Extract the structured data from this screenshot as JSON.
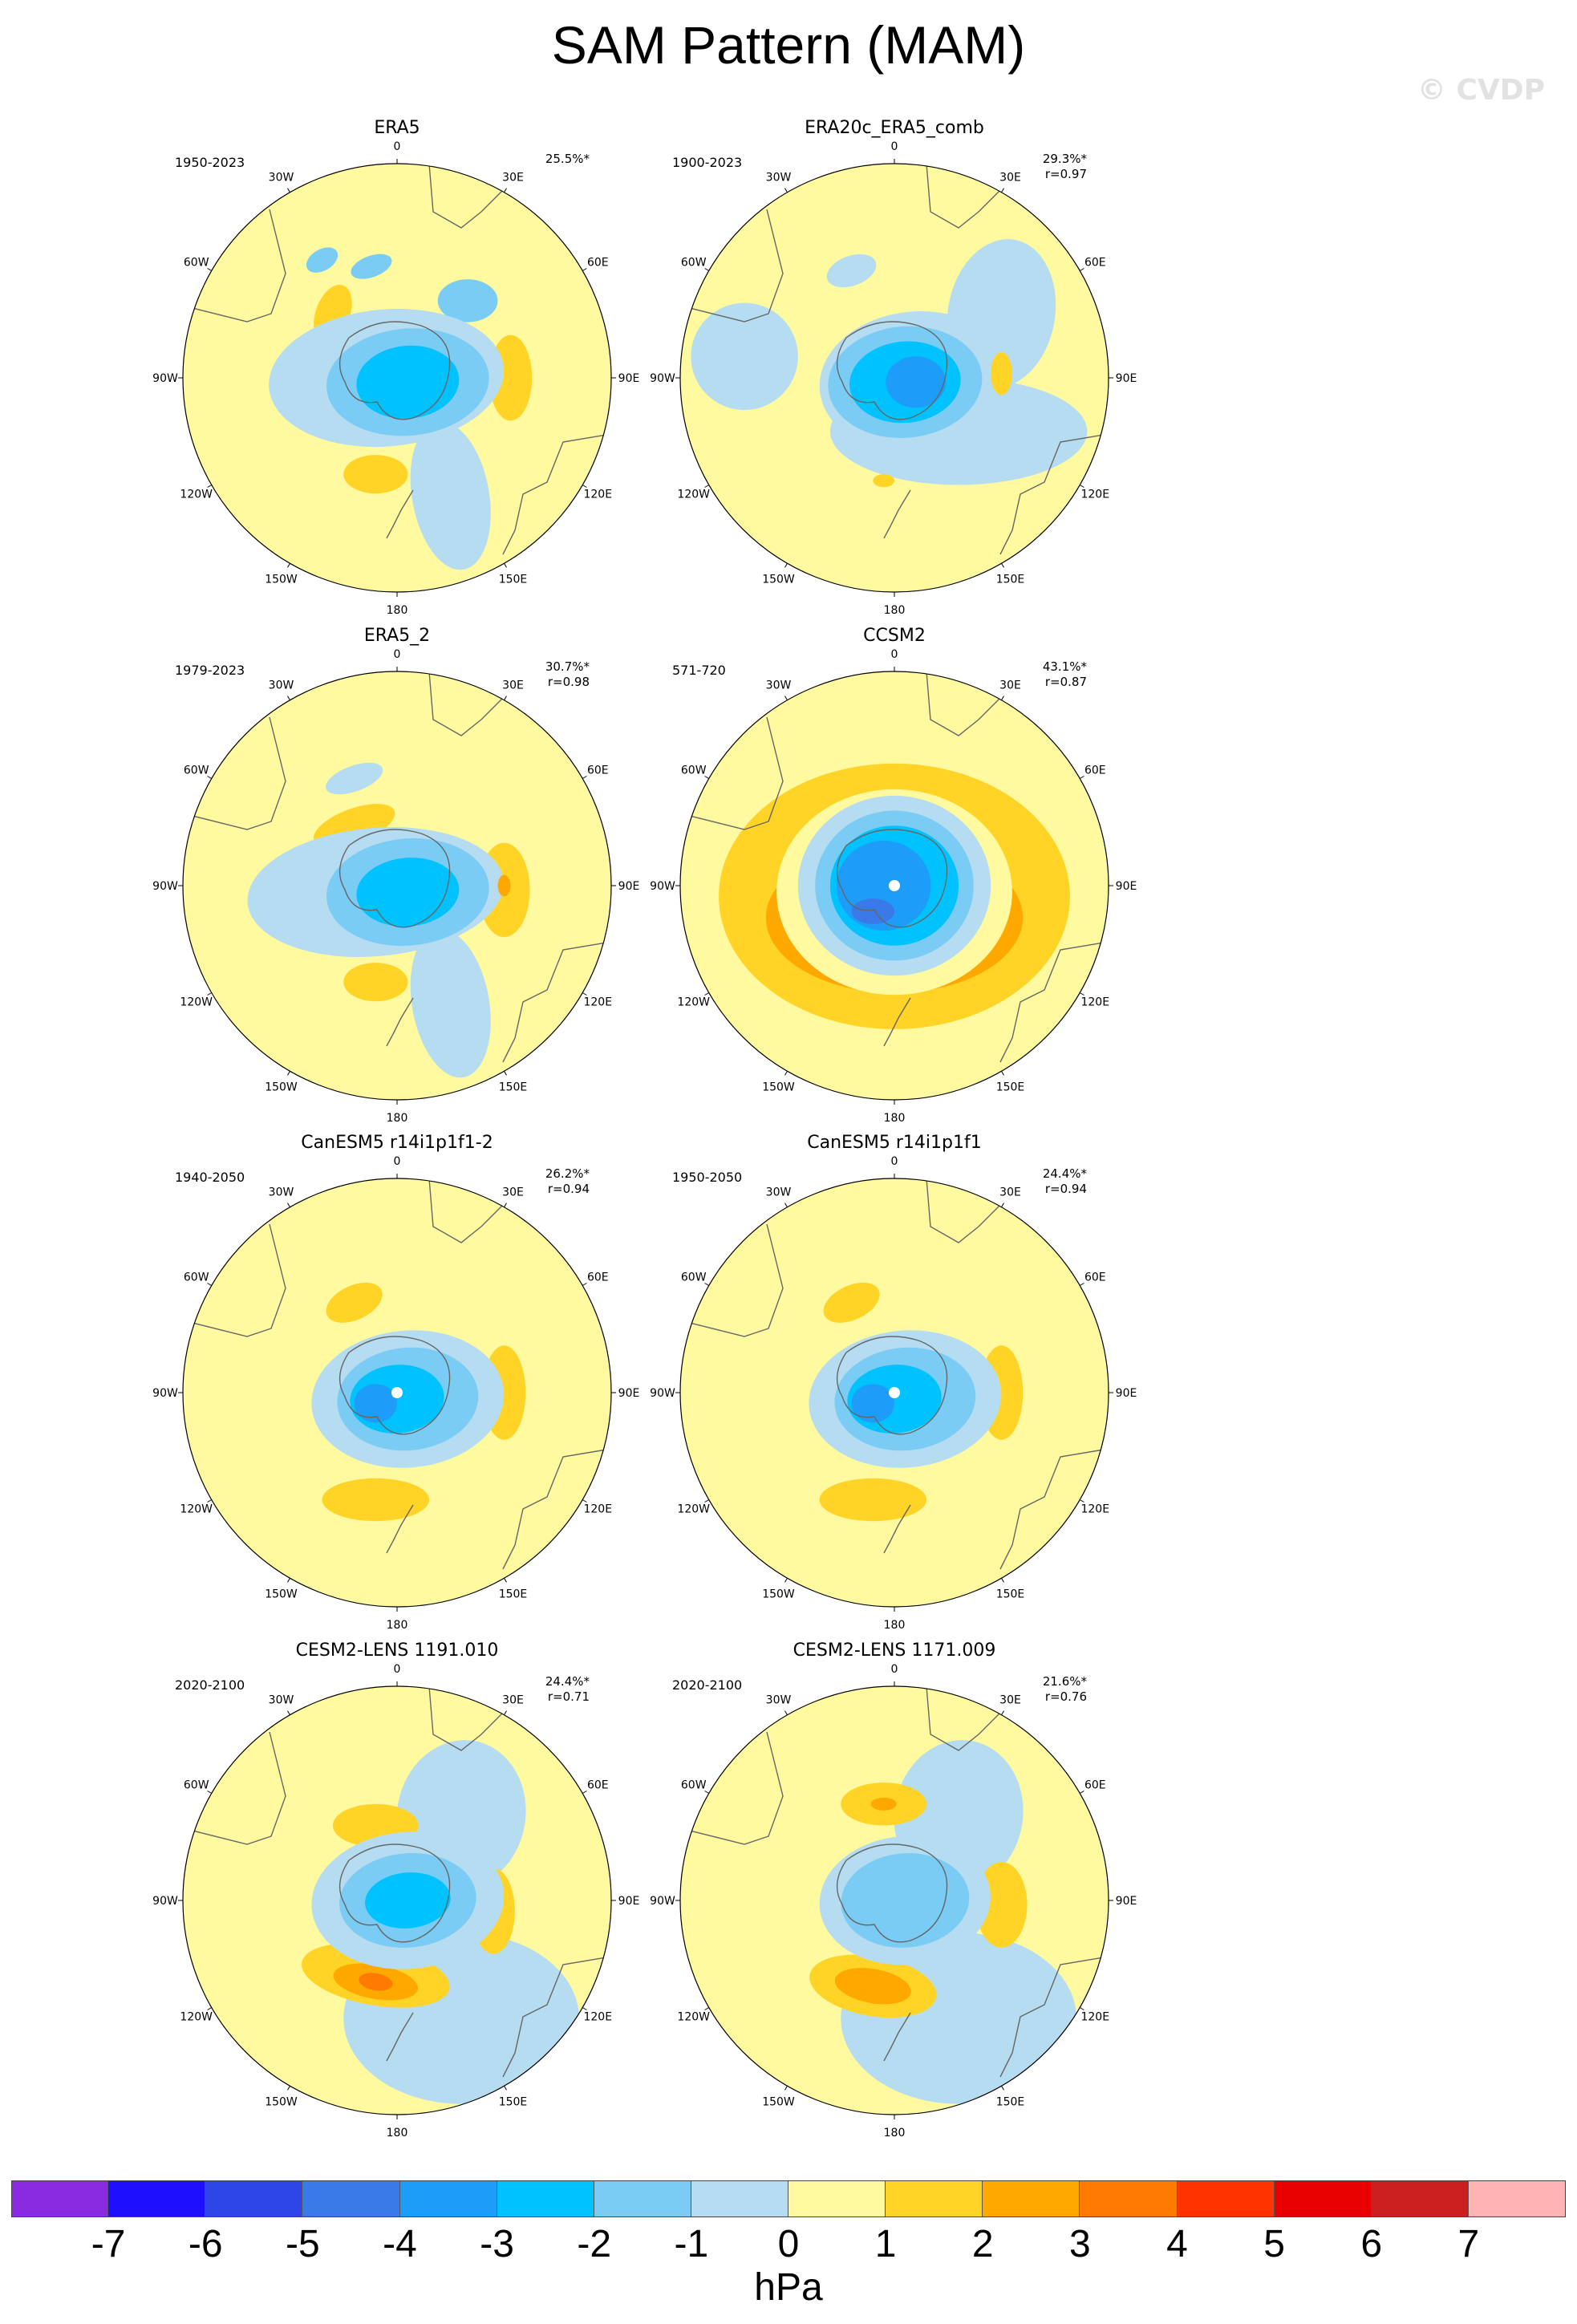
{
  "title": "SAM Pattern (MAM)",
  "watermark": "© CVDP",
  "longitude_labels": [
    "0",
    "30E",
    "60E",
    "90E",
    "120E",
    "150E",
    "180",
    "150W",
    "120W",
    "90W",
    "60W",
    "30W"
  ],
  "panels": [
    {
      "name": "ERA5",
      "period": "1950-2023",
      "pct": "25.5%*",
      "r": "",
      "center_dot": false
    },
    {
      "name": "ERA20c_ERA5_comb",
      "period": "1900-2023",
      "pct": "29.3%*",
      "r": "r=0.97",
      "center_dot": false
    },
    {
      "name": "ERA5_2",
      "period": "1979-2023",
      "pct": "30.7%*",
      "r": "r=0.98",
      "center_dot": false
    },
    {
      "name": "CCSM2",
      "period": "571-720",
      "pct": "43.1%*",
      "r": "r=0.87",
      "center_dot": true
    },
    {
      "name": "CanESM5 r14i1p1f1-2",
      "period": "1940-2050",
      "pct": "26.2%*",
      "r": "r=0.94",
      "center_dot": true
    },
    {
      "name": "CanESM5 r14i1p1f1",
      "period": "1950-2050",
      "pct": "24.4%*",
      "r": "r=0.94",
      "center_dot": true
    },
    {
      "name": "CESM2-LENS 1191.010",
      "period": "2020-2100",
      "pct": "24.4%*",
      "r": "r=0.71",
      "center_dot": false
    },
    {
      "name": "CESM2-LENS 1171.009",
      "period": "2020-2100",
      "pct": "21.6%*",
      "r": "r=0.76",
      "center_dot": false
    }
  ],
  "colorbar": {
    "colors": [
      "#8a2be2",
      "#1e10ff",
      "#2e46e8",
      "#3a7ae8",
      "#1e9cfa",
      "#00c2ff",
      "#7accf5",
      "#b5dcf0",
      "#fffaa0",
      "#ffd426",
      "#ffa800",
      "#ff7a00",
      "#ff3300",
      "#e80000",
      "#cc1f1f",
      "#ffb3b3"
    ],
    "ticks": [
      "-7",
      "-6",
      "-5",
      "-4",
      "-3",
      "-2",
      "-1",
      "0",
      "1",
      "2",
      "3",
      "4",
      "5",
      "6",
      "7"
    ],
    "units": "hPa"
  }
}
